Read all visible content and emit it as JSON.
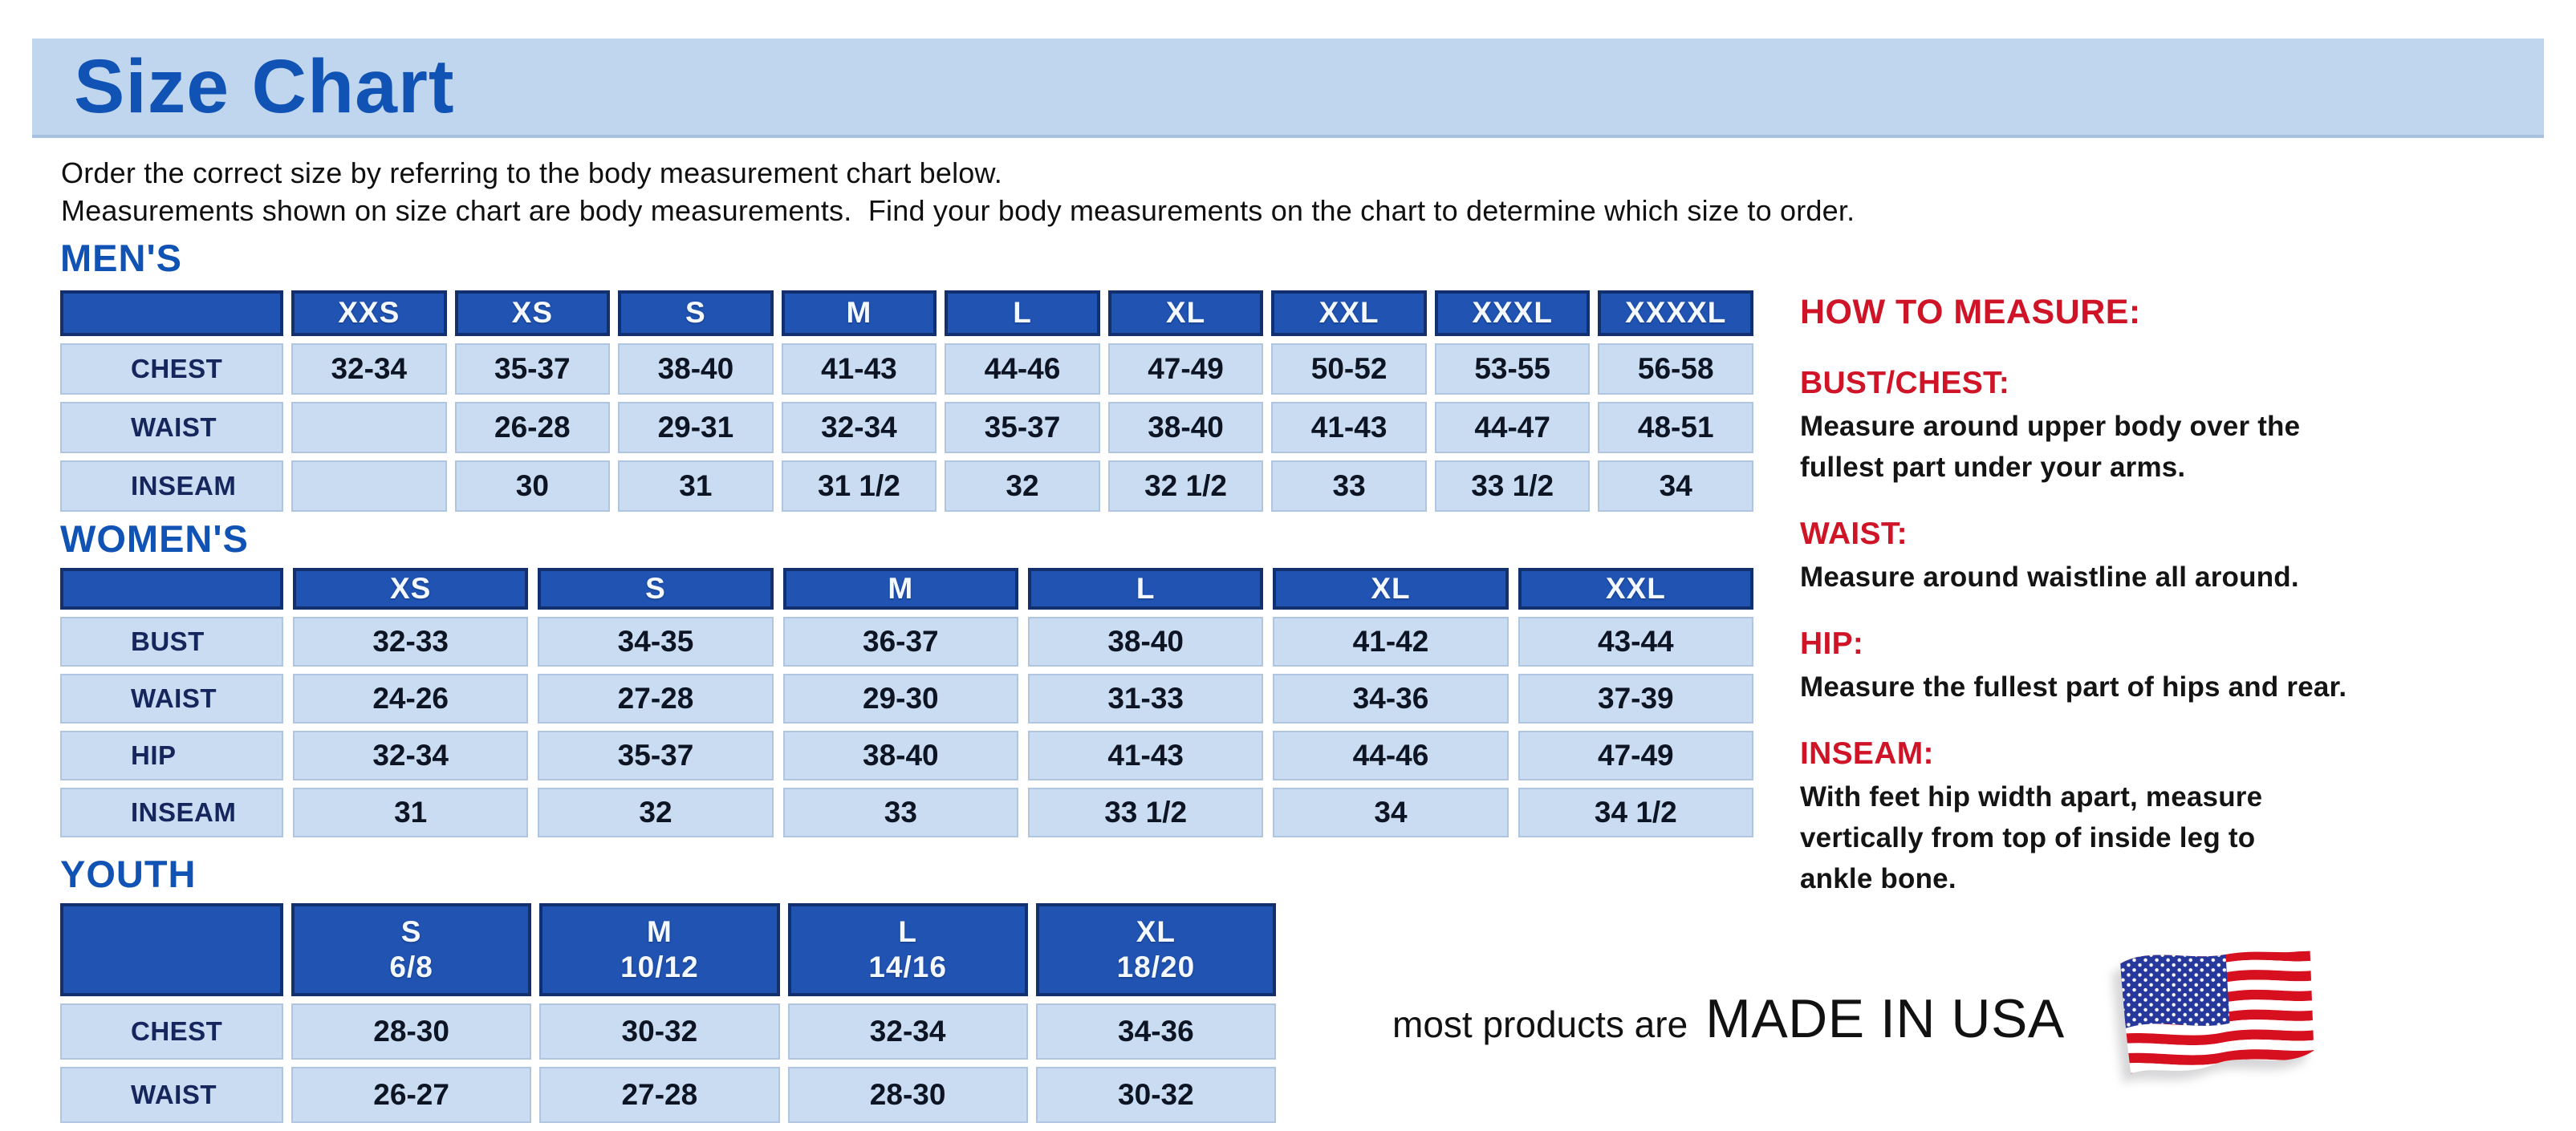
{
  "page": {
    "title": "Size Chart",
    "intro_line1": "Order the correct size by referring to the body measurement chart below.",
    "intro_line2": "Measurements shown on size chart are body measurements.  Find your body measurements on the chart to determine which size to order."
  },
  "tables": {
    "mens": {
      "heading": "MEN'S",
      "columns": [
        "XXS",
        "XS",
        "S",
        "M",
        "L",
        "XL",
        "XXL",
        "XXXL",
        "XXXXL"
      ],
      "rows": [
        {
          "label": "CHEST",
          "values": [
            "32-34",
            "35-37",
            "38-40",
            "41-43",
            "44-46",
            "47-49",
            "50-52",
            "53-55",
            "56-58"
          ]
        },
        {
          "label": "WAIST",
          "values": [
            "",
            "26-28",
            "29-31",
            "32-34",
            "35-37",
            "38-40",
            "41-43",
            "44-47",
            "48-51"
          ]
        },
        {
          "label": "INSEAM",
          "values": [
            "",
            "30",
            "31",
            "31 1/2",
            "32",
            "32 1/2",
            "33",
            "33 1/2",
            "34"
          ]
        }
      ]
    },
    "womens": {
      "heading": "WOMEN'S",
      "columns": [
        "XS",
        "S",
        "M",
        "L",
        "XL",
        "XXL"
      ],
      "rows": [
        {
          "label": "BUST",
          "values": [
            "32-33",
            "34-35",
            "36-37",
            "38-40",
            "41-42",
            "43-44"
          ]
        },
        {
          "label": "WAIST",
          "values": [
            "24-26",
            "27-28",
            "29-30",
            "31-33",
            "34-36",
            "37-39"
          ]
        },
        {
          "label": "HIP",
          "values": [
            "32-34",
            "35-37",
            "38-40",
            "41-43",
            "44-46",
            "47-49"
          ]
        },
        {
          "label": "INSEAM",
          "values": [
            "31",
            "32",
            "33",
            "33 1/2",
            "34",
            "34 1/2"
          ]
        }
      ]
    },
    "youth": {
      "heading": "YOUTH",
      "columns": [
        {
          "size": "S",
          "group": "6/8"
        },
        {
          "size": "M",
          "group": "10/12"
        },
        {
          "size": "L",
          "group": "14/16"
        },
        {
          "size": "XL",
          "group": "18/20"
        }
      ],
      "rows": [
        {
          "label": "CHEST",
          "values": [
            "28-30",
            "30-32",
            "32-34",
            "34-36"
          ]
        },
        {
          "label": "WAIST",
          "values": [
            "26-27",
            "27-28",
            "28-30",
            "30-32"
          ]
        }
      ]
    }
  },
  "how_to_measure": {
    "heading": "HOW TO MEASURE:",
    "sections": [
      {
        "label": "BUST/CHEST:",
        "lines": [
          "Measure around upper body over the",
          "fullest part under your arms."
        ]
      },
      {
        "label": "WAIST:",
        "lines": [
          "Measure around waistline all around."
        ]
      },
      {
        "label": "HIP:",
        "lines": [
          "Measure the fullest part of hips and rear."
        ]
      },
      {
        "label": "INSEAM:",
        "lines": [
          "With feet hip width apart, measure",
          "vertically from top of inside leg to",
          "ankle bone."
        ]
      }
    ]
  },
  "footer": {
    "made_in_prefix": "most products are",
    "made_in": "MADE IN USA",
    "flag_icon": "us-flag-icon"
  },
  "colors": {
    "banner_blue": "#c0d6ee",
    "title_blue": "#1153b4",
    "header_blue": "#2053b2",
    "header_border_navy": "#122f6e",
    "cell_blue": "#cadcf1",
    "label_navy": "#15265c",
    "accent_red": "#cf1427",
    "flag_red": "#d7101f",
    "flag_canton_blue": "#26389b"
  }
}
